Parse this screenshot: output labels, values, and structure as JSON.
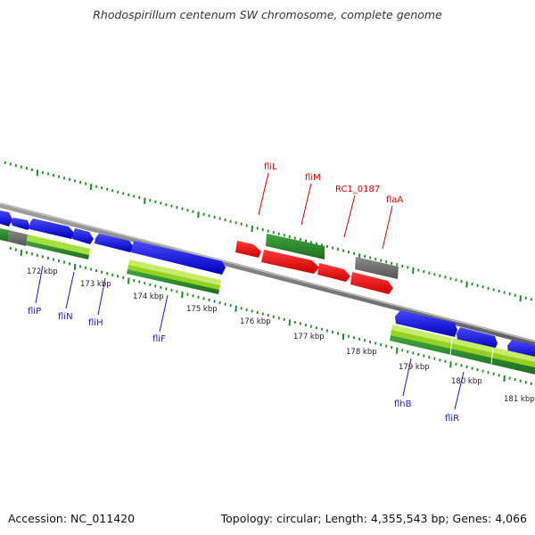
{
  "title": "Rhodospirillum centenum SW chromosome, complete genome",
  "footer": {
    "accession": "Accession: NC_011420",
    "summary": "Topology: circular; Length: 4,355,543 bp; Genes: 4,066"
  },
  "colors": {
    "backbone": "#808080",
    "tick_green": "#1f8a1f",
    "cds_blue": "#1414d8",
    "gene_green": "#2e8b2e",
    "gene_lightgreen": "#9ed21e",
    "rna_red": "#e81010",
    "other_gray": "#707070",
    "label_red": "#e00000",
    "label_blue": "#1a1ac8"
  },
  "scale_labels": [
    "172 kbp",
    "173 kbp",
    "174 kbp",
    "175 kbp",
    "176 kbp",
    "177 kbp",
    "178 kbp",
    "179 kbp",
    "180 kbp",
    "181 kbp"
  ],
  "gene_labels_top": [
    "fliL",
    "fliM",
    "RC1_0187",
    "flaA"
  ],
  "gene_labels_bottom": [
    "fliP",
    "fliN",
    "fliH",
    "fliF",
    "flhB",
    "fliR"
  ]
}
